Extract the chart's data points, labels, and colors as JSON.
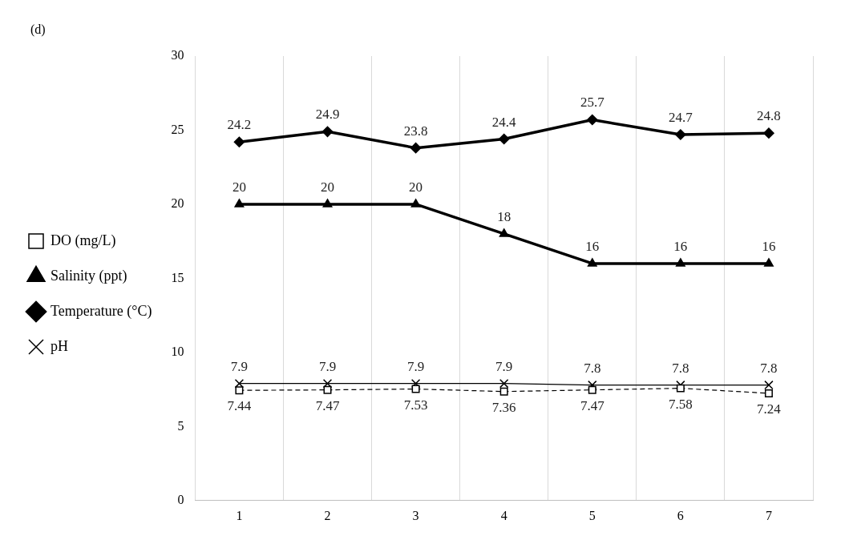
{
  "chart_data": {
    "type": "line",
    "title": "(d)",
    "categories": [
      "1",
      "2",
      "3",
      "4",
      "5",
      "6",
      "7"
    ],
    "series": [
      {
        "name": "DO (mg/L)",
        "color": "#000000",
        "marker": "square",
        "line_style": "dashed",
        "values": [
          7.44,
          7.47,
          7.53,
          7.36,
          7.47,
          7.58,
          7.24
        ]
      },
      {
        "name": "Salinity (ppt)",
        "color": "#000000",
        "marker": "triangle",
        "line_style": "solid",
        "values": [
          20,
          20,
          20,
          18,
          16,
          16,
          16
        ]
      },
      {
        "name": "Temperature (°C)",
        "color": "#000000",
        "marker": "diamond",
        "line_style": "solid",
        "values": [
          24.2,
          24.9,
          23.8,
          24.4,
          25.7,
          24.7,
          24.8
        ]
      },
      {
        "name": "pH",
        "color": "#000000",
        "marker": "cross",
        "line_style": "solid",
        "values": [
          7.9,
          7.9,
          7.9,
          7.9,
          7.8,
          7.8,
          7.8
        ]
      }
    ],
    "ylim": [
      0,
      30
    ],
    "yticks": [
      0,
      5,
      10,
      15,
      20,
      25,
      30
    ],
    "grid": "x",
    "legend": "left",
    "data_labels": true
  }
}
